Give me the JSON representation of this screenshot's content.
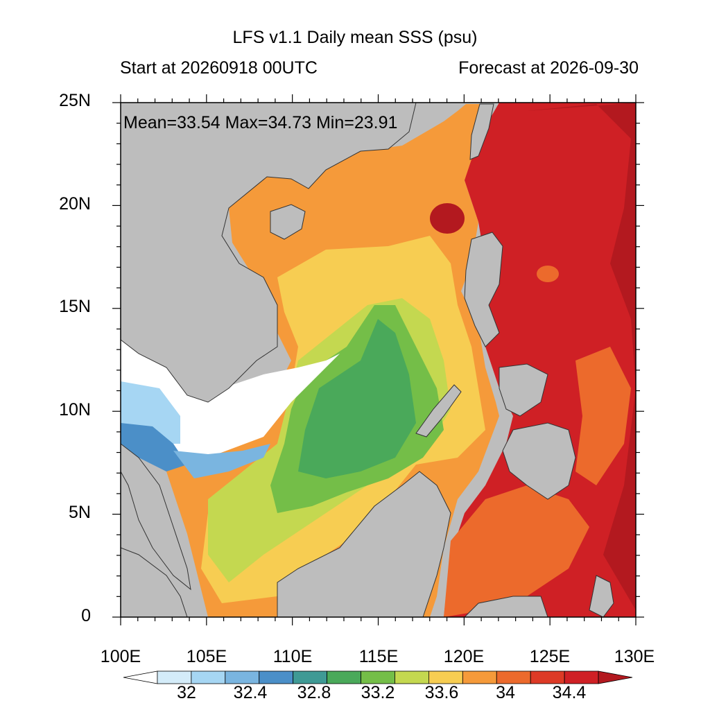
{
  "title": "LFS v1.1 Daily mean SSS (psu)",
  "subtitle_left": "Start at 20260918 00UTC",
  "subtitle_right": "Forecast at 2026-09-30",
  "stats": "Mean=33.54  Max=34.73  Min=23.91",
  "map": {
    "lon_range": [
      100,
      130
    ],
    "lat_range": [
      0,
      25
    ],
    "lat_ticks": [
      "0",
      "5N",
      "10N",
      "15N",
      "20N",
      "25N"
    ],
    "lon_ticks": [
      "100E",
      "105E",
      "110E",
      "115E",
      "120E",
      "125E",
      "130E"
    ],
    "land_color": "#bdbdbd",
    "nodata_color": "#ffffff"
  },
  "colorbar": {
    "labels": [
      "32",
      "32.4",
      "32.8",
      "33.2",
      "33.6",
      "34",
      "34.4"
    ],
    "colors": [
      "#ffffff",
      "#d4ecf9",
      "#a6d6f3",
      "#7ab5e0",
      "#4b8fc8",
      "#3f9a95",
      "#4aa95a",
      "#74be48",
      "#c4d850",
      "#f7cd52",
      "#f59a3a",
      "#ec6a2c",
      "#dd3a26",
      "#cf2025",
      "#b3191f"
    ]
  }
}
